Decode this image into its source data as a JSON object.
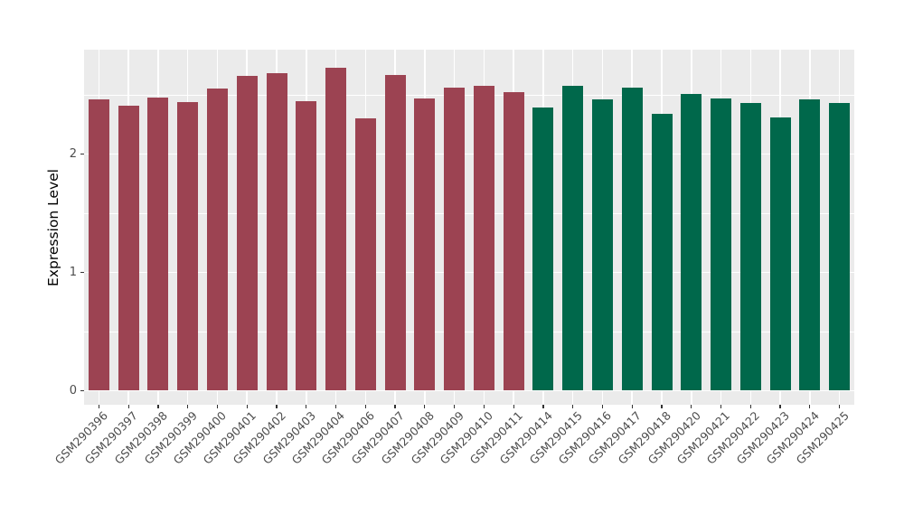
{
  "figure": {
    "background": "#FFFFFF",
    "panel_background": "#EBEBEB",
    "grid_color": "#FFFFFF",
    "axis_text_color": "#4D4D4D",
    "axis_title_color": "#000000",
    "tick_color": "#333333"
  },
  "chart_data": {
    "type": "bar",
    "title": "",
    "xlabel": "",
    "ylabel": "Expression Level",
    "categories": [
      "GSM290396",
      "GSM290397",
      "GSM290398",
      "GSM290399",
      "GSM290400",
      "GSM290401",
      "GSM290402",
      "GSM290403",
      "GSM290404",
      "GSM290406",
      "GSM290407",
      "GSM290408",
      "GSM290409",
      "GSM290410",
      "GSM290411",
      "GSM290414",
      "GSM290415",
      "GSM290416",
      "GSM290417",
      "GSM290418",
      "GSM290420",
      "GSM290421",
      "GSM290422",
      "GSM290423",
      "GSM290424",
      "GSM290425"
    ],
    "values": [
      2.46,
      2.41,
      2.48,
      2.44,
      2.55,
      2.66,
      2.68,
      2.45,
      2.73,
      2.3,
      2.67,
      2.47,
      2.56,
      2.58,
      2.52,
      2.39,
      2.58,
      2.46,
      2.56,
      2.34,
      2.51,
      2.47,
      2.43,
      2.31,
      2.46,
      2.43
    ],
    "bar_groups": [
      "group1",
      "group1",
      "group1",
      "group1",
      "group1",
      "group1",
      "group1",
      "group1",
      "group1",
      "group1",
      "group1",
      "group1",
      "group1",
      "group1",
      "group1",
      "group2",
      "group2",
      "group2",
      "group2",
      "group2",
      "group2",
      "group2",
      "group2",
      "group2",
      "group2",
      "group2"
    ],
    "group_colors": {
      "group1": "#9C4352",
      "group2": "#00684B"
    },
    "yticks": [
      0,
      1,
      2
    ],
    "yticks_minor": [
      0.5,
      1.5,
      2.5
    ],
    "ylim": [
      0,
      2.88
    ],
    "grid": "on",
    "legend": "none"
  }
}
